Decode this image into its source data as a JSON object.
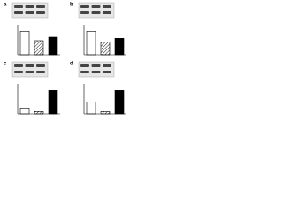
{
  "chart_data": [
    {
      "type": "bar",
      "panel": "a",
      "categories": [
        null,
        null,
        null
      ],
      "values": [
        1.0,
        0.6,
        0.75
      ],
      "fills": [
        "#ffffff",
        "hatched",
        "#000000"
      ],
      "ylim": [
        0,
        1.2
      ]
    },
    {
      "type": "bar",
      "panel": "b",
      "categories": [
        null,
        null,
        null
      ],
      "values": [
        1.0,
        0.55,
        0.7
      ],
      "fills": [
        "#ffffff",
        "hatched",
        "#000000"
      ],
      "ylim": [
        0,
        1.2
      ]
    },
    {
      "type": "bar",
      "panel": "c",
      "categories": [
        null,
        null,
        null
      ],
      "values": [
        0.25,
        0.1,
        1.0
      ],
      "fills": [
        "#ffffff",
        "hatched",
        "#000000"
      ],
      "ylim": [
        0,
        1.2
      ]
    },
    {
      "type": "bar",
      "panel": "d",
      "categories": [
        null,
        null,
        null
      ],
      "values": [
        0.5,
        0.1,
        1.0
      ],
      "fills": [
        "#ffffff",
        "hatched",
        "#000000"
      ],
      "ylim": [
        0,
        1.2
      ]
    }
  ]
}
